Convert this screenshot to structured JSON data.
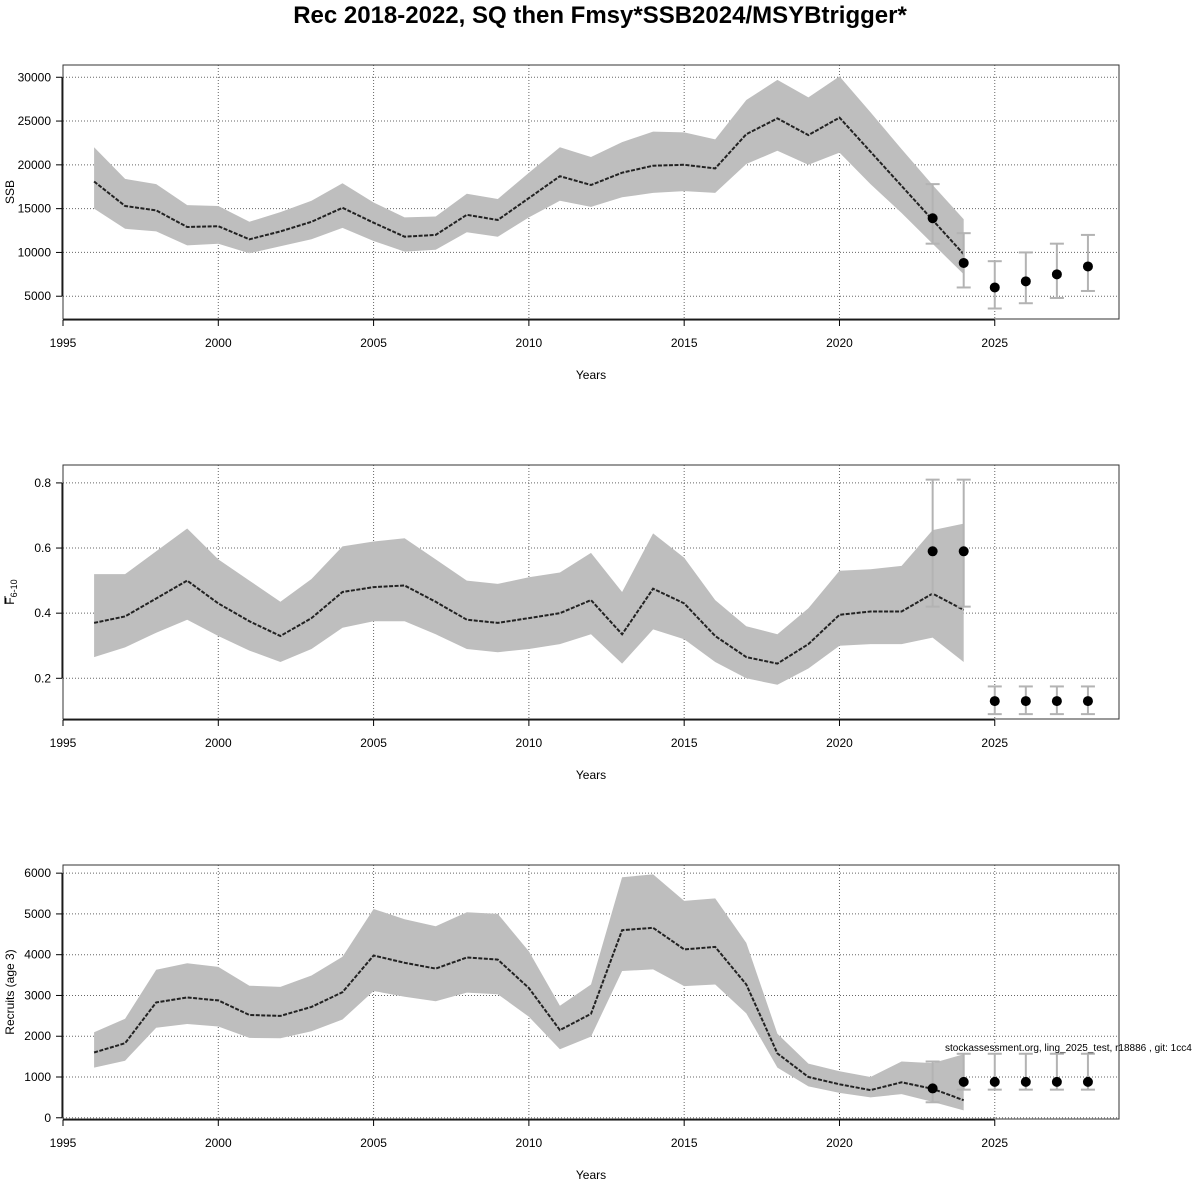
{
  "title": "Rec 2018-2022, SQ then Fmsy*SSB2024/MSYBtrigger*",
  "watermark": "stockassessment.org, ling_2025_test, r18886 , git: 1cc4",
  "colors": {
    "band": "#bebebe",
    "line": "#222222",
    "points": "#000000",
    "errorbar": "#b3b3b3",
    "grid": "#666666"
  },
  "chart_data": [
    {
      "type": "line",
      "name": "ssb",
      "title": "",
      "xlabel": "Years",
      "ylabel": "SSB",
      "ylabel_sub": "",
      "xlim": [
        1995,
        2029
      ],
      "ylim": [
        2400,
        31400
      ],
      "xticks": [
        1995,
        2000,
        2005,
        2010,
        2015,
        2020,
        2025
      ],
      "yticks": [
        5000,
        10000,
        15000,
        20000,
        25000,
        30000
      ],
      "x": [
        1996,
        1997,
        1998,
        1999,
        2000,
        2001,
        2002,
        2003,
        2004,
        2005,
        2006,
        2007,
        2008,
        2009,
        2010,
        2011,
        2012,
        2013,
        2014,
        2015,
        2016,
        2017,
        2018,
        2019,
        2020,
        2021,
        2022,
        2023,
        2024
      ],
      "estimate": [
        18100,
        15300,
        14800,
        12900,
        13000,
        11500,
        12400,
        13500,
        15100,
        13400,
        11800,
        12000,
        14300,
        13700,
        16200,
        18700,
        17700,
        19100,
        19900,
        20000,
        19600,
        23500,
        25300,
        23400,
        25400,
        21500,
        17600,
        13700,
        9800
      ],
      "upper": [
        22000,
        18400,
        17800,
        15400,
        15300,
        13500,
        14600,
        15900,
        17900,
        15700,
        14000,
        14100,
        16700,
        16100,
        19100,
        22000,
        20900,
        22600,
        23800,
        23700,
        22900,
        27400,
        29700,
        27700,
        30100,
        26000,
        21800,
        17700,
        13800
      ],
      "lower": [
        15000,
        12700,
        12400,
        10800,
        11000,
        9900,
        10700,
        11500,
        12800,
        11300,
        10100,
        10300,
        12300,
        11800,
        14000,
        15900,
        15200,
        16300,
        16800,
        17000,
        16800,
        20100,
        21600,
        20000,
        21400,
        17800,
        14500,
        11000,
        7500
      ],
      "points": [
        {
          "x": 2023,
          "y": 13900,
          "low": 11000,
          "high": 17800
        },
        {
          "x": 2024,
          "y": 8800,
          "low": 6000,
          "high": 12200
        },
        {
          "x": 2025,
          "y": 6000,
          "low": 3600,
          "high": 9000
        },
        {
          "x": 2026,
          "y": 6700,
          "low": 4200,
          "high": 10000
        },
        {
          "x": 2027,
          "y": 7500,
          "low": 4800,
          "high": 11000
        },
        {
          "x": 2028,
          "y": 8400,
          "low": 5600,
          "high": 12000
        }
      ]
    },
    {
      "type": "line",
      "name": "fbar",
      "title": "",
      "xlabel": "Years",
      "ylabel": "F",
      "ylabel_sub": "6-10",
      "xlim": [
        1995,
        2029
      ],
      "ylim": [
        0.075,
        0.855
      ],
      "xticks": [
        1995,
        2000,
        2005,
        2010,
        2015,
        2020,
        2025
      ],
      "yticks": [
        0.2,
        0.4,
        0.6,
        0.8
      ],
      "x": [
        1996,
        1997,
        1998,
        1999,
        2000,
        2001,
        2002,
        2003,
        2004,
        2005,
        2006,
        2007,
        2008,
        2009,
        2010,
        2011,
        2012,
        2013,
        2014,
        2015,
        2016,
        2017,
        2018,
        2019,
        2020,
        2021,
        2022,
        2023,
        2024
      ],
      "estimate": [
        0.37,
        0.39,
        0.445,
        0.5,
        0.43,
        0.375,
        0.33,
        0.385,
        0.465,
        0.48,
        0.485,
        0.435,
        0.38,
        0.37,
        0.385,
        0.4,
        0.44,
        0.335,
        0.475,
        0.43,
        0.33,
        0.265,
        0.245,
        0.305,
        0.395,
        0.405,
        0.405,
        0.46,
        0.41
      ],
      "upper": [
        0.52,
        0.52,
        0.59,
        0.66,
        0.565,
        0.5,
        0.435,
        0.505,
        0.605,
        0.62,
        0.63,
        0.565,
        0.5,
        0.49,
        0.51,
        0.525,
        0.585,
        0.465,
        0.645,
        0.57,
        0.44,
        0.36,
        0.335,
        0.415,
        0.53,
        0.535,
        0.545,
        0.655,
        0.675
      ],
      "lower": [
        0.265,
        0.295,
        0.34,
        0.38,
        0.33,
        0.285,
        0.25,
        0.29,
        0.355,
        0.375,
        0.375,
        0.335,
        0.29,
        0.28,
        0.29,
        0.305,
        0.335,
        0.245,
        0.35,
        0.32,
        0.25,
        0.2,
        0.18,
        0.23,
        0.3,
        0.305,
        0.305,
        0.325,
        0.25
      ],
      "points": [
        {
          "x": 2023,
          "y": 0.59,
          "low": 0.42,
          "high": 0.81
        },
        {
          "x": 2024,
          "y": 0.59,
          "low": 0.42,
          "high": 0.81
        },
        {
          "x": 2025,
          "y": 0.13,
          "low": 0.09,
          "high": 0.175
        },
        {
          "x": 2026,
          "y": 0.13,
          "low": 0.09,
          "high": 0.175
        },
        {
          "x": 2027,
          "y": 0.13,
          "low": 0.09,
          "high": 0.175
        },
        {
          "x": 2028,
          "y": 0.13,
          "low": 0.09,
          "high": 0.175
        }
      ]
    },
    {
      "type": "line",
      "name": "recruits",
      "title": "",
      "xlabel": "Years",
      "ylabel": "Recruits (age 3)",
      "ylabel_sub": "",
      "xlim": [
        1995,
        2029
      ],
      "ylim": [
        -30,
        6200
      ],
      "xticks": [
        1995,
        2000,
        2005,
        2010,
        2015,
        2020,
        2025
      ],
      "yticks": [
        0,
        1000,
        2000,
        3000,
        4000,
        5000,
        6000
      ],
      "x": [
        1996,
        1997,
        1998,
        1999,
        2000,
        2001,
        2002,
        2003,
        2004,
        2005,
        2006,
        2007,
        2008,
        2009,
        2010,
        2011,
        2012,
        2013,
        2014,
        2015,
        2016,
        2017,
        2018,
        2019,
        2020,
        2021,
        2022,
        2023,
        2024
      ],
      "estimate": [
        1600,
        1830,
        2830,
        2950,
        2880,
        2520,
        2500,
        2720,
        3080,
        3980,
        3800,
        3660,
        3930,
        3880,
        3180,
        2150,
        2550,
        4600,
        4660,
        4130,
        4190,
        3270,
        1580,
        1000,
        820,
        680,
        870,
        710,
        430
      ],
      "upper": [
        2100,
        2430,
        3630,
        3790,
        3700,
        3240,
        3210,
        3490,
        3950,
        5120,
        4870,
        4700,
        5040,
        5000,
        4080,
        2750,
        3270,
        5900,
        5970,
        5320,
        5380,
        4290,
        2060,
        1330,
        1140,
        1000,
        1380,
        1340,
        1560
      ],
      "lower": [
        1230,
        1400,
        2210,
        2300,
        2240,
        1960,
        1950,
        2120,
        2410,
        3110,
        2970,
        2860,
        3070,
        3030,
        2480,
        1680,
        1990,
        3600,
        3640,
        3230,
        3270,
        2560,
        1230,
        770,
        610,
        500,
        580,
        390,
        180
      ],
      "points": [
        {
          "x": 2023,
          "y": 720,
          "low": 380,
          "high": 1380
        },
        {
          "x": 2024,
          "y": 880,
          "low": 690,
          "high": 1570
        },
        {
          "x": 2025,
          "y": 880,
          "low": 690,
          "high": 1570
        },
        {
          "x": 2026,
          "y": 880,
          "low": 690,
          "high": 1570
        },
        {
          "x": 2027,
          "y": 880,
          "low": 690,
          "high": 1570
        },
        {
          "x": 2028,
          "y": 880,
          "low": 690,
          "high": 1570
        }
      ]
    }
  ]
}
